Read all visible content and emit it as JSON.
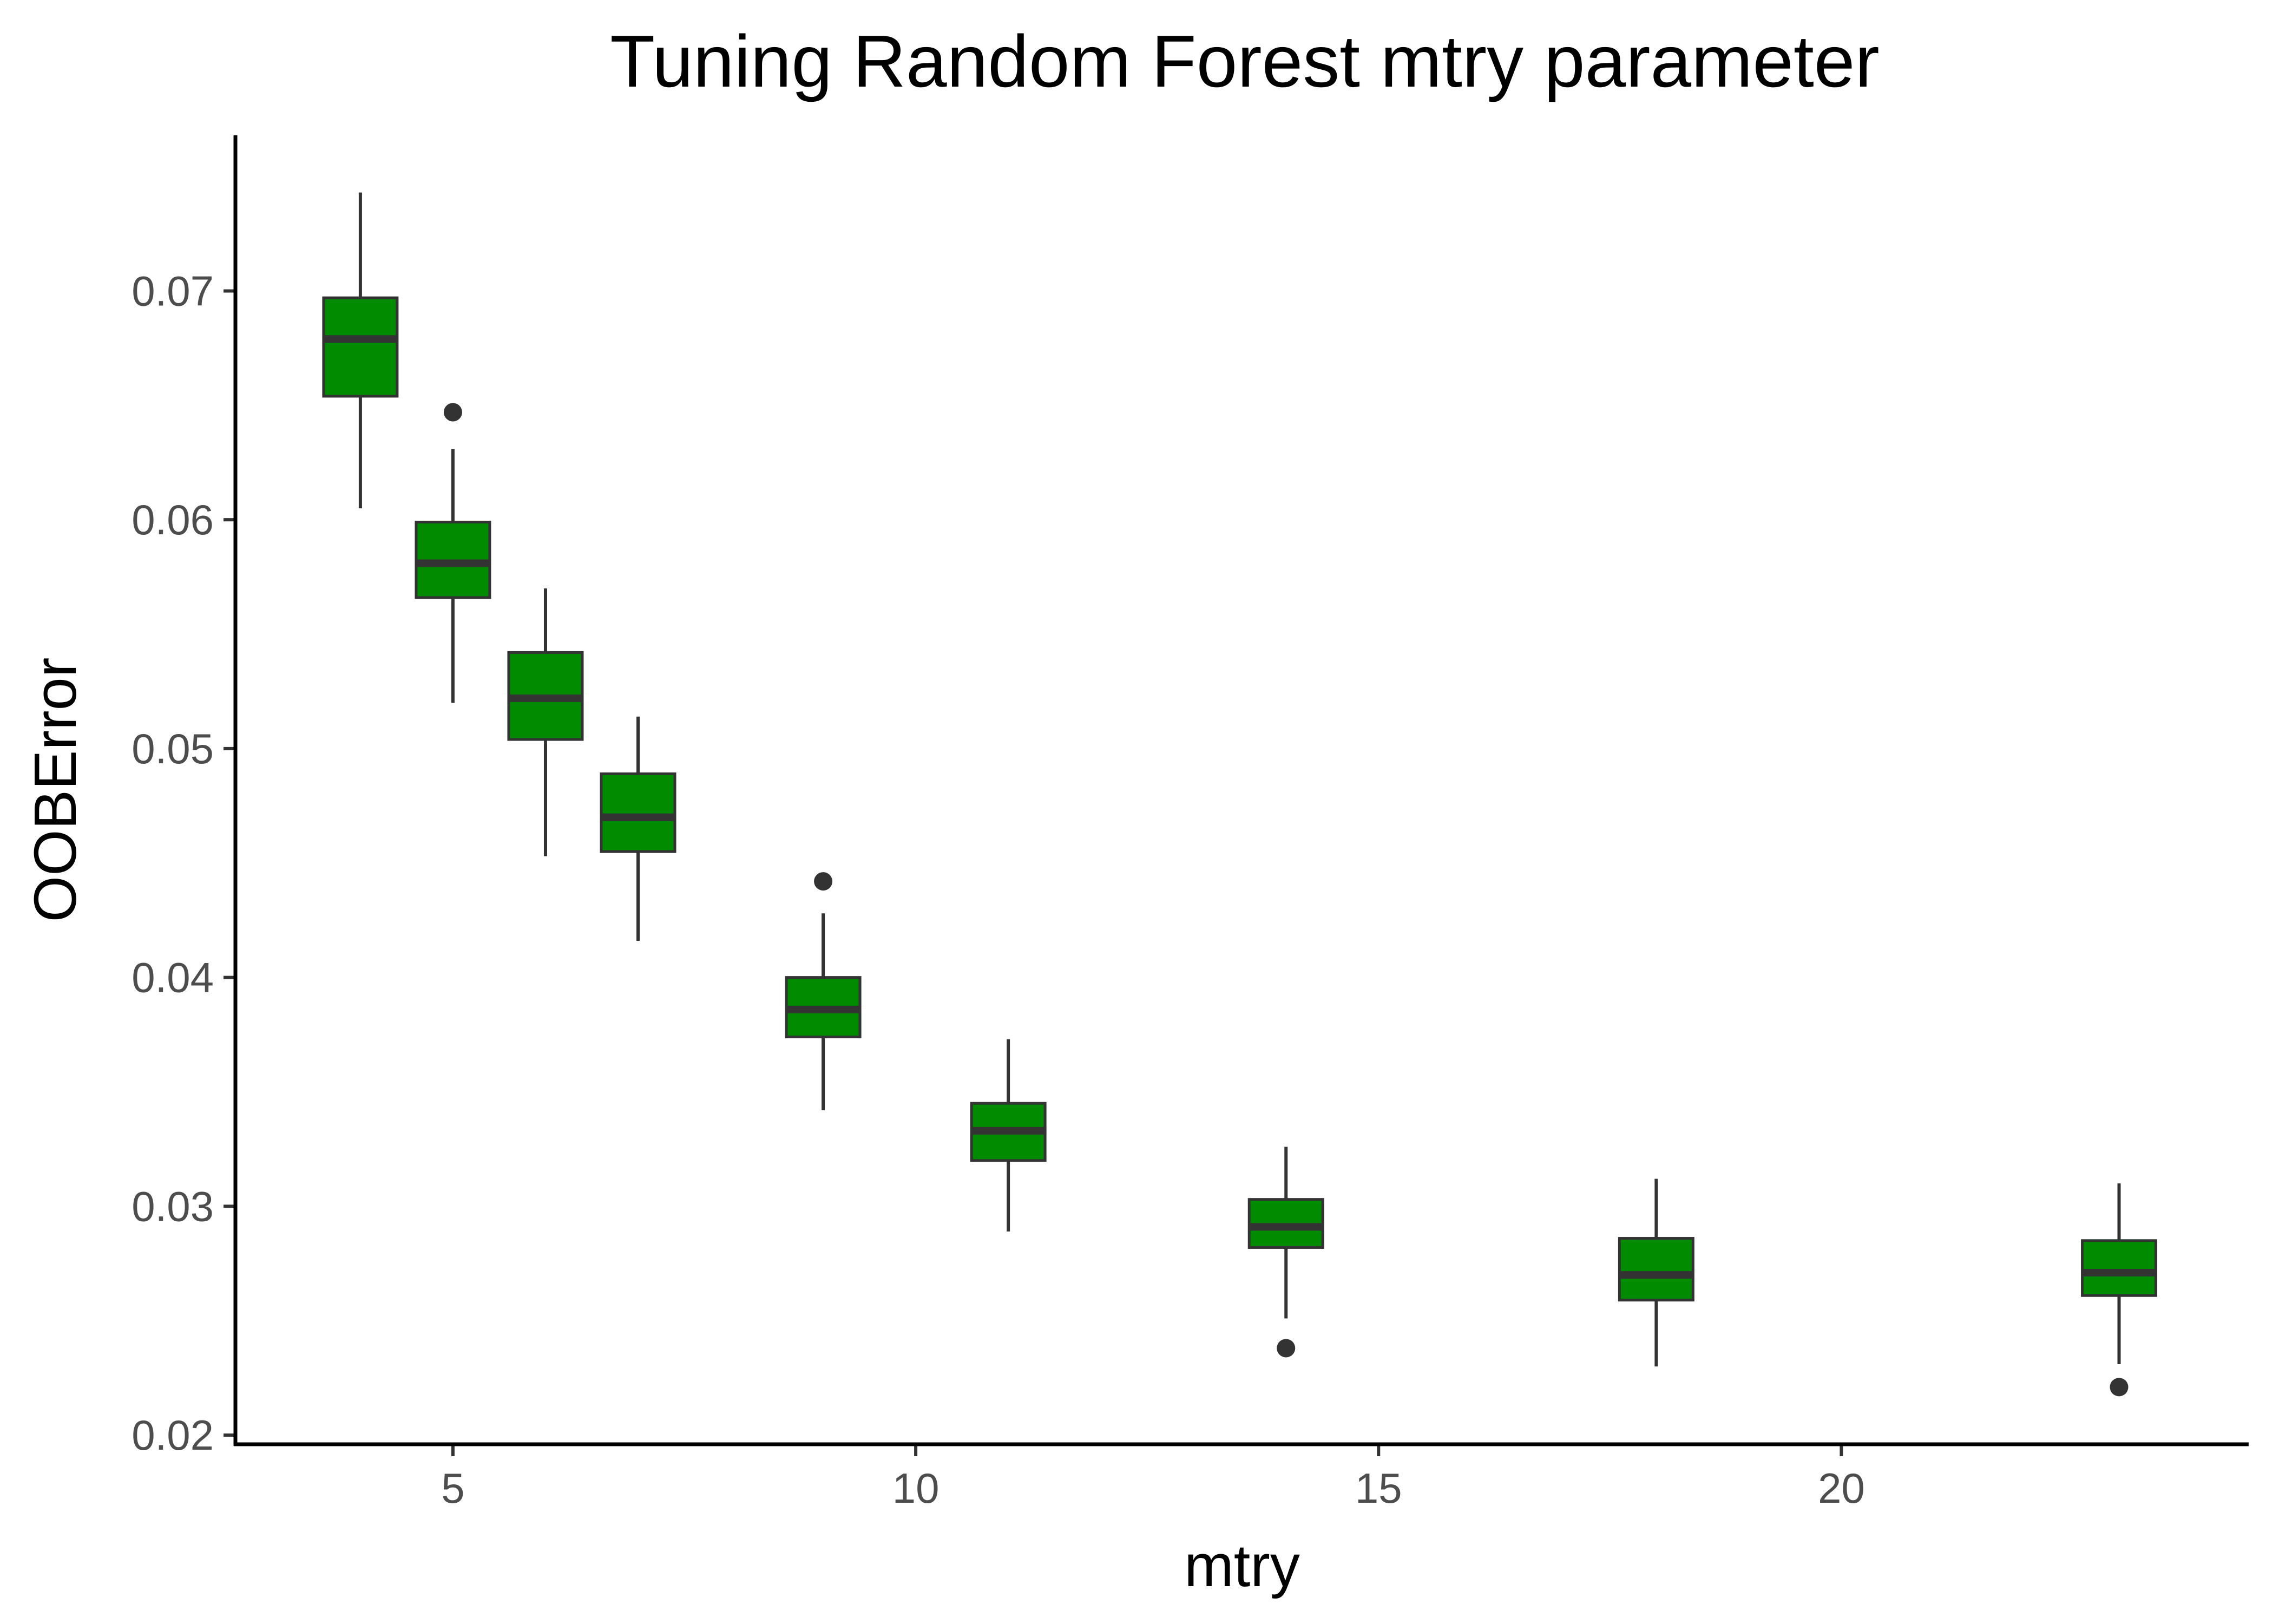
{
  "chart_data": {
    "type": "boxplot",
    "title": "Tuning Random Forest mtry parameter",
    "xlabel": "mtry",
    "ylabel": "OOBError",
    "xlim": [
      2.65,
      24.4
    ],
    "ylim": [
      0.0196,
      0.0768
    ],
    "xticks": [
      5,
      10,
      15,
      20
    ],
    "xtick_labels": [
      "5",
      "10",
      "15",
      "20"
    ],
    "yticks": [
      0.02,
      0.03,
      0.04,
      0.05,
      0.06,
      0.07
    ],
    "ytick_labels": [
      "0.02",
      "0.03",
      "0.04",
      "0.05",
      "0.06",
      "0.07"
    ],
    "grid": false,
    "legend": "none",
    "fill_color": "#008B00",
    "line_color": "#333333",
    "boxes": [
      {
        "x": 4,
        "whisker_low": 0.0605,
        "q1": 0.0654,
        "median": 0.0679,
        "q3": 0.0697,
        "whisker_high": 0.0743,
        "outliers": []
      },
      {
        "x": 5,
        "whisker_low": 0.052,
        "q1": 0.0566,
        "median": 0.0581,
        "q3": 0.0599,
        "whisker_high": 0.0631,
        "outliers": [
          0.0647
        ]
      },
      {
        "x": 6,
        "whisker_low": 0.0453,
        "q1": 0.0504,
        "median": 0.0522,
        "q3": 0.0542,
        "whisker_high": 0.057,
        "outliers": []
      },
      {
        "x": 7,
        "whisker_low": 0.0416,
        "q1": 0.0455,
        "median": 0.047,
        "q3": 0.0489,
        "whisker_high": 0.0514,
        "outliers": []
      },
      {
        "x": 9,
        "whisker_low": 0.0342,
        "q1": 0.0374,
        "median": 0.0386,
        "q3": 0.04,
        "whisker_high": 0.0428,
        "outliers": [
          0.0442
        ]
      },
      {
        "x": 11,
        "whisker_low": 0.0289,
        "q1": 0.032,
        "median": 0.0333,
        "q3": 0.0345,
        "whisker_high": 0.0373,
        "outliers": []
      },
      {
        "x": 14,
        "whisker_low": 0.0251,
        "q1": 0.0282,
        "median": 0.0291,
        "q3": 0.0303,
        "whisker_high": 0.0326,
        "outliers": [
          0.0238
        ]
      },
      {
        "x": 18,
        "whisker_low": 0.023,
        "q1": 0.0259,
        "median": 0.027,
        "q3": 0.0286,
        "whisker_high": 0.0312,
        "outliers": []
      },
      {
        "x": 23,
        "whisker_low": 0.0231,
        "q1": 0.0261,
        "median": 0.0271,
        "q3": 0.0285,
        "whisker_high": 0.031,
        "outliers": [
          0.0221
        ]
      }
    ]
  }
}
